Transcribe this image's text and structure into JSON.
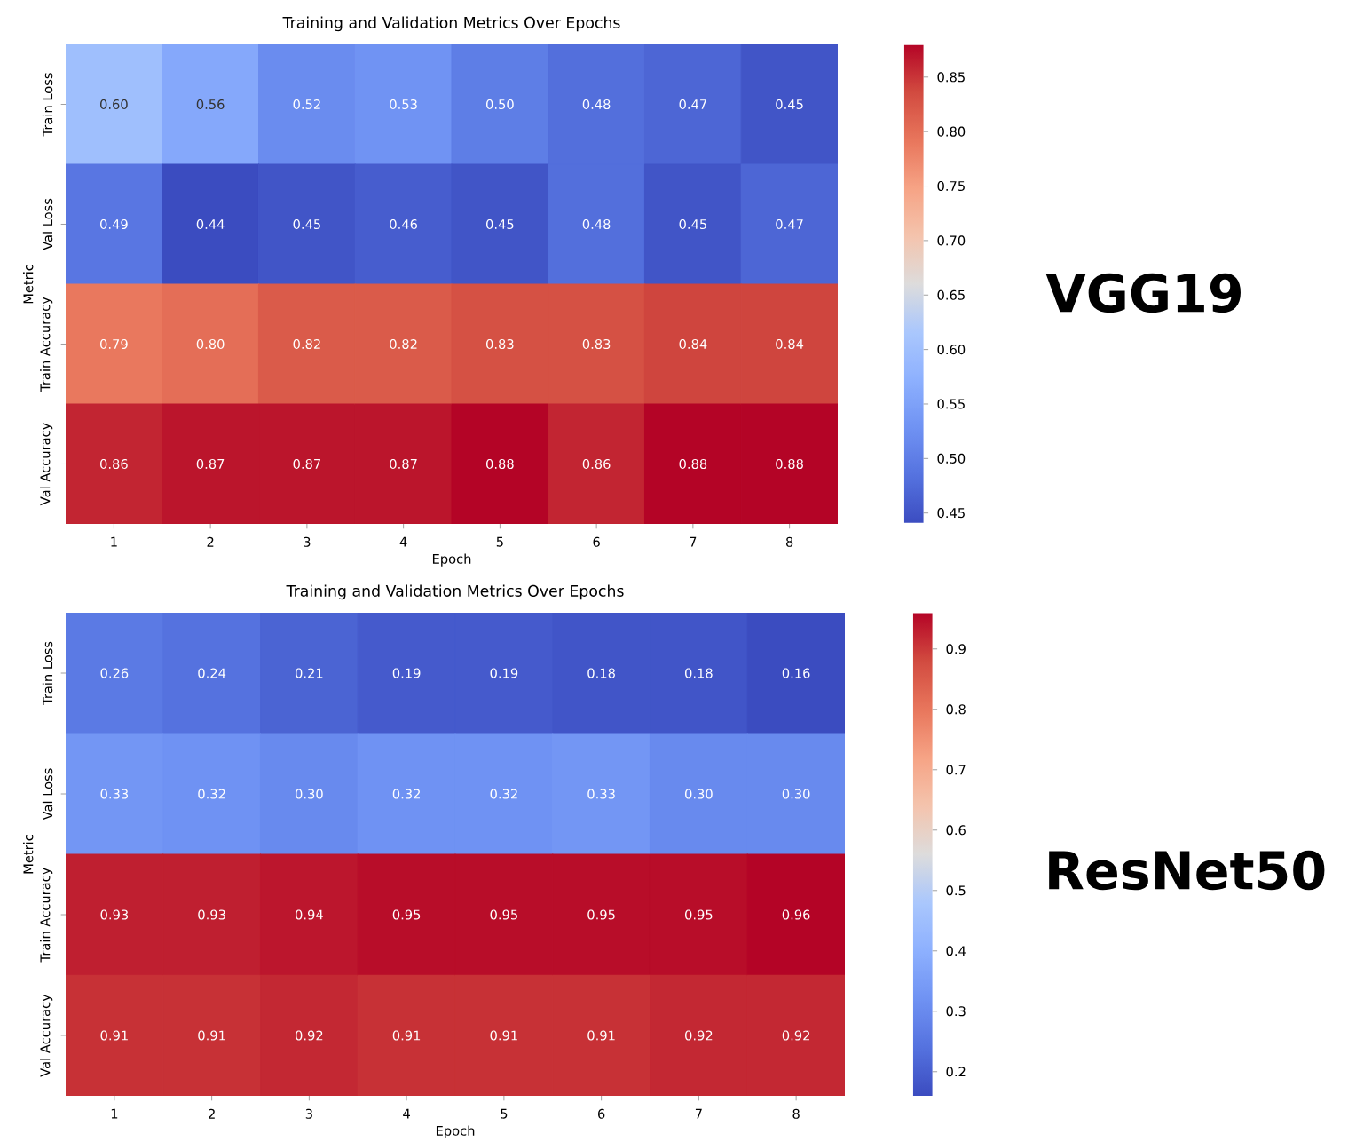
{
  "chart_data": [
    {
      "type": "heatmap",
      "title": "Training and Validation Metrics Over Epochs",
      "xlabel": "Epoch",
      "ylabel": "Metric",
      "categories": [
        "1",
        "2",
        "3",
        "4",
        "5",
        "6",
        "7",
        "8"
      ],
      "y_categories": [
        "Train Loss",
        "Val Loss",
        "Train Accuracy",
        "Val Accuracy"
      ],
      "cells": [
        [
          0.6,
          0.56,
          0.52,
          0.53,
          0.5,
          0.48,
          0.47,
          0.45
        ],
        [
          0.49,
          0.44,
          0.45,
          0.46,
          0.45,
          0.48,
          0.45,
          0.47
        ],
        [
          0.79,
          0.8,
          0.82,
          0.82,
          0.83,
          0.83,
          0.84,
          0.84
        ],
        [
          0.86,
          0.87,
          0.87,
          0.87,
          0.88,
          0.86,
          0.88,
          0.88
        ]
      ],
      "cell_labels": [
        [
          "0.60",
          "0.56",
          "0.52",
          "0.53",
          "0.50",
          "0.48",
          "0.47",
          "0.45"
        ],
        [
          "0.49",
          "0.44",
          "0.45",
          "0.46",
          "0.45",
          "0.48",
          "0.45",
          "0.47"
        ],
        [
          "0.79",
          "0.80",
          "0.82",
          "0.82",
          "0.83",
          "0.83",
          "0.84",
          "0.84"
        ],
        [
          "0.86",
          "0.87",
          "0.87",
          "0.87",
          "0.88",
          "0.86",
          "0.88",
          "0.88"
        ]
      ],
      "clim": [
        0.44,
        0.88
      ],
      "cticks": [
        0.45,
        {
          "value": 0.5,
          "label": "0.50"
        },
        0.55,
        {
          "value": 0.6,
          "label": "0.60"
        },
        0.65,
        {
          "value": 0.7,
          "label": "0.70"
        },
        0.75,
        {
          "value": 0.8,
          "label": "0.80"
        },
        0.85
      ],
      "annotations": [
        "VGG19"
      ]
    },
    {
      "type": "heatmap",
      "title": "Training and Validation Metrics Over Epochs",
      "xlabel": "Epoch",
      "ylabel": "Metric",
      "categories": [
        "1",
        "2",
        "3",
        "4",
        "5",
        "6",
        "7",
        "8"
      ],
      "y_categories": [
        "Train Loss",
        "Val Loss",
        "Train Accuracy",
        "Val Accuracy"
      ],
      "cells": [
        [
          0.26,
          0.24,
          0.21,
          0.19,
          0.19,
          0.18,
          0.18,
          0.16
        ],
        [
          0.33,
          0.32,
          0.3,
          0.32,
          0.32,
          0.33,
          0.3,
          0.3
        ],
        [
          0.93,
          0.93,
          0.94,
          0.95,
          0.95,
          0.95,
          0.95,
          0.96
        ],
        [
          0.91,
          0.91,
          0.92,
          0.91,
          0.91,
          0.91,
          0.92,
          0.92
        ]
      ],
      "cell_labels": [
        [
          "0.26",
          "0.24",
          "0.21",
          "0.19",
          "0.19",
          "0.18",
          "0.18",
          "0.16"
        ],
        [
          "0.33",
          "0.32",
          "0.30",
          "0.32",
          "0.32",
          "0.33",
          "0.30",
          "0.30"
        ],
        [
          "0.93",
          "0.93",
          "0.94",
          "0.95",
          "0.95",
          "0.95",
          "0.95",
          "0.96"
        ],
        [
          "0.91",
          "0.91",
          "0.92",
          "0.91",
          "0.91",
          "0.91",
          "0.92",
          "0.92"
        ]
      ],
      "clim": [
        0.16,
        0.96
      ],
      "cticks": [
        0.2,
        0.3,
        0.4,
        0.5,
        0.6,
        0.7,
        0.8,
        0.9
      ],
      "annotations": [
        "ResNet50"
      ]
    }
  ]
}
